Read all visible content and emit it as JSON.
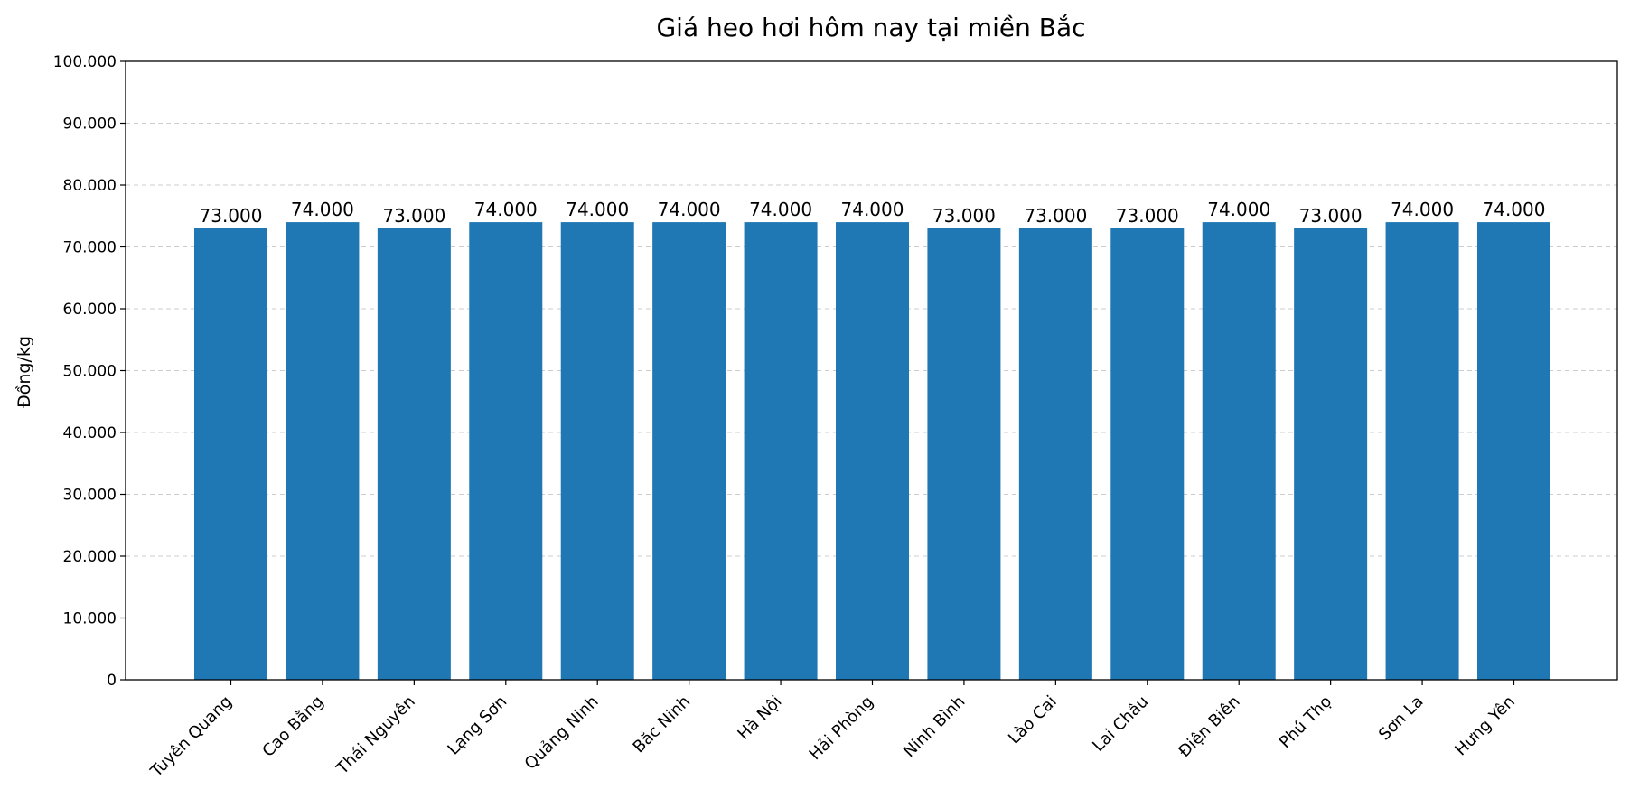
{
  "chart_data": {
    "type": "bar",
    "title": "Giá heo hơi hôm nay tại miền Bắc",
    "xlabel": "",
    "ylabel": "Đồng/kg",
    "ylim": [
      0,
      100000
    ],
    "yticks": [
      0,
      10000,
      20000,
      30000,
      40000,
      50000,
      60000,
      70000,
      80000,
      90000,
      100000
    ],
    "ytick_labels": [
      "0",
      "10.000",
      "20.000",
      "30.000",
      "40.000",
      "50.000",
      "60.000",
      "70.000",
      "80.000",
      "90.000",
      "100.000"
    ],
    "grid": "y-dashed",
    "bar_color": "#1f77b4",
    "categories": [
      "Tuyên Quang",
      "Cao Bằng",
      "Thái Nguyên",
      "Lạng Sơn",
      "Quảng Ninh",
      "Bắc Ninh",
      "Hà Nội",
      "Hải Phòng",
      "Ninh Bình",
      "Lào Cai",
      "Lai Châu",
      "Điện Biên",
      "Phú Thọ",
      "Sơn La",
      "Hưng Yên"
    ],
    "values": [
      73000,
      74000,
      73000,
      74000,
      74000,
      74000,
      74000,
      74000,
      73000,
      73000,
      73000,
      74000,
      73000,
      74000,
      74000
    ],
    "value_labels": [
      "73.000",
      "74.000",
      "73.000",
      "74.000",
      "74.000",
      "74.000",
      "74.000",
      "74.000",
      "73.000",
      "73.000",
      "73.000",
      "74.000",
      "73.000",
      "74.000",
      "74.000"
    ]
  }
}
